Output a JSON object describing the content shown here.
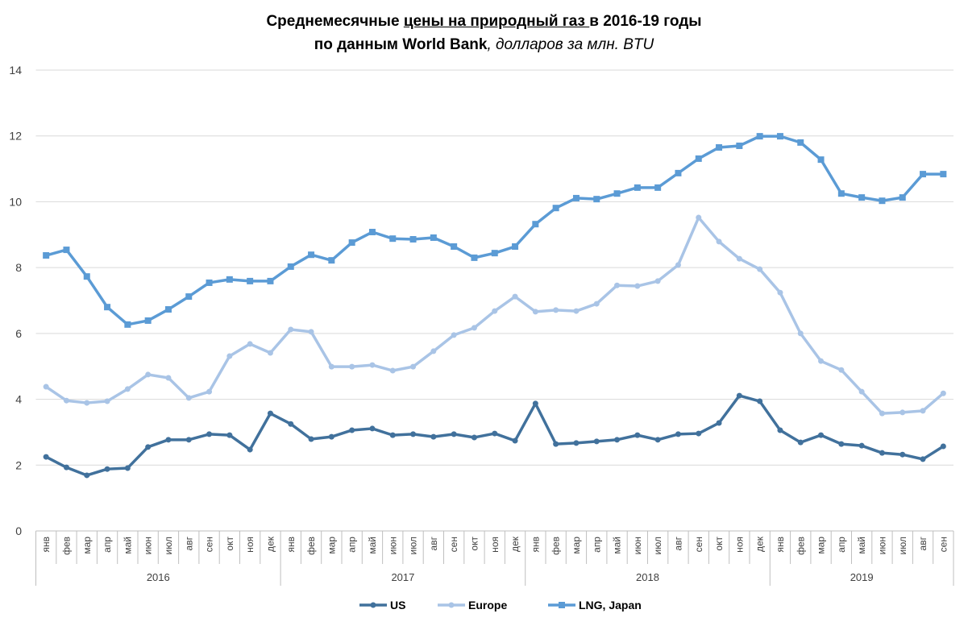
{
  "title": {
    "line1_a": "Среднемесячные ",
    "line1_u": "цены на природный газ ",
    "line1_b": "в 2016-19 годы",
    "line2_a": "по данным World Bank",
    "line2_i": ", долларов за млн. BTU"
  },
  "chart_data": {
    "type": "line",
    "title": "Среднемесячные цены на природный газ в 2016-19 годы по данным World Bank, долларов за млн. BTU",
    "xlabel": "",
    "ylabel": "",
    "ylim": [
      0,
      14
    ],
    "yticks": [
      0,
      2,
      4,
      6,
      8,
      10,
      12,
      14
    ],
    "grid": true,
    "legend_position": "bottom",
    "months": [
      "янв",
      "фев",
      "мар",
      "апр",
      "май",
      "июн",
      "июл",
      "авг",
      "сен",
      "окт",
      "ноя",
      "дек"
    ],
    "years": [
      "2016",
      "2017",
      "2018",
      "2019"
    ],
    "months_per_year": [
      12,
      12,
      12,
      9
    ],
    "series": [
      {
        "name": "US",
        "color": "#41719C",
        "marker": "circle",
        "values": [
          2.25,
          1.93,
          1.69,
          1.88,
          1.91,
          2.55,
          2.77,
          2.77,
          2.94,
          2.91,
          2.47,
          3.57,
          3.25,
          2.79,
          2.86,
          3.06,
          3.11,
          2.91,
          2.94,
          2.86,
          2.94,
          2.84,
          2.96,
          2.74,
          3.87,
          2.64,
          2.67,
          2.72,
          2.77,
          2.91,
          2.77,
          2.94,
          2.96,
          3.28,
          4.11,
          3.94,
          3.06,
          2.69,
          2.91,
          2.64,
          2.59,
          2.37,
          2.32,
          2.18,
          2.57
        ]
      },
      {
        "name": "Europe",
        "color": "#A9C4E6",
        "marker": "circle",
        "values": [
          4.38,
          3.96,
          3.89,
          3.94,
          4.31,
          4.75,
          4.65,
          4.04,
          4.23,
          5.31,
          5.68,
          5.41,
          6.12,
          6.05,
          4.99,
          4.99,
          5.04,
          4.87,
          4.99,
          5.46,
          5.95,
          6.17,
          6.68,
          7.12,
          6.66,
          6.71,
          6.68,
          6.9,
          7.46,
          7.44,
          7.59,
          8.08,
          9.52,
          8.79,
          8.27,
          7.95,
          7.24,
          6.0,
          5.16,
          4.89,
          4.23,
          3.57,
          3.6,
          3.65,
          4.18
        ]
      },
      {
        "name": "LNG, Japan",
        "color": "#5B9BD5",
        "marker": "square",
        "values": [
          8.37,
          8.54,
          7.73,
          6.8,
          6.27,
          6.39,
          6.73,
          7.12,
          7.54,
          7.64,
          7.59,
          7.59,
          8.03,
          8.39,
          8.22,
          8.76,
          9.08,
          8.88,
          8.86,
          8.91,
          8.64,
          8.3,
          8.44,
          8.64,
          9.32,
          9.81,
          10.11,
          10.08,
          10.25,
          10.43,
          10.43,
          10.87,
          11.31,
          11.65,
          11.7,
          11.99,
          11.99,
          11.8,
          11.28,
          10.25,
          10.13,
          10.03,
          10.13,
          10.84,
          10.84
        ]
      }
    ]
  }
}
